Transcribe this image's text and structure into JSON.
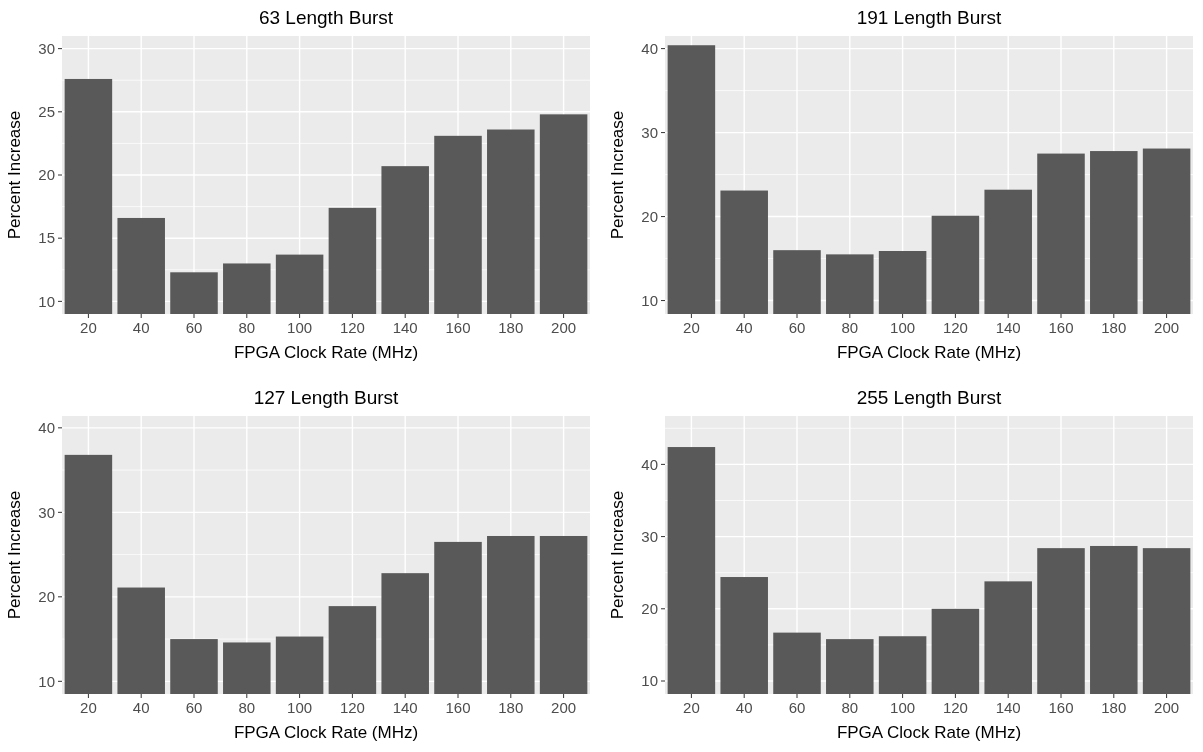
{
  "chart_data": [
    {
      "type": "bar",
      "title": "63 Length Burst",
      "xlabel": "FPGA Clock Rate (MHz)",
      "ylabel": "Percent Increase",
      "categories": [
        "20",
        "40",
        "60",
        "80",
        "100",
        "120",
        "140",
        "160",
        "180",
        "200"
      ],
      "values": [
        27.6,
        16.6,
        12.3,
        13.0,
        13.7,
        17.4,
        20.7,
        23.1,
        23.6,
        24.8
      ],
      "color": "#595959",
      "ylim": [
        9,
        31
      ],
      "yticks": [
        10,
        15,
        20,
        25,
        30
      ],
      "grid": true
    },
    {
      "type": "bar",
      "title": "191 Length Burst",
      "xlabel": "FPGA Clock Rate (MHz)",
      "ylabel": "Percent Increase",
      "categories": [
        "20",
        "40",
        "60",
        "80",
        "100",
        "120",
        "140",
        "160",
        "180",
        "200"
      ],
      "values": [
        40.4,
        23.1,
        16.0,
        15.5,
        15.9,
        20.1,
        23.2,
        27.5,
        27.8,
        28.1
      ],
      "color": "#595959",
      "ylim": [
        8.4,
        41.5
      ],
      "yticks": [
        10,
        20,
        30,
        40
      ],
      "grid": true
    },
    {
      "type": "bar",
      "title": "127 Length Burst",
      "xlabel": "FPGA Clock Rate (MHz)",
      "ylabel": "Percent Increase",
      "categories": [
        "20",
        "40",
        "60",
        "80",
        "100",
        "120",
        "140",
        "160",
        "180",
        "200"
      ],
      "values": [
        36.8,
        21.1,
        15.0,
        14.6,
        15.3,
        18.9,
        22.8,
        26.5,
        27.2,
        27.2
      ],
      "color": "#595959",
      "ylim": [
        8.5,
        41.4
      ],
      "yticks": [
        10,
        20,
        30,
        40
      ],
      "grid": true
    },
    {
      "type": "bar",
      "title": "255 Length Burst",
      "xlabel": "FPGA Clock Rate (MHz)",
      "ylabel": "Percent Increase",
      "categories": [
        "20",
        "40",
        "60",
        "80",
        "100",
        "120",
        "140",
        "160",
        "180",
        "200"
      ],
      "values": [
        42.4,
        24.4,
        16.7,
        15.8,
        16.2,
        20.0,
        23.8,
        28.4,
        28.7,
        28.4
      ],
      "color": "#595959",
      "ylim": [
        8.2,
        46.7
      ],
      "yticks": [
        10,
        20,
        30,
        40
      ],
      "grid": true
    }
  ]
}
